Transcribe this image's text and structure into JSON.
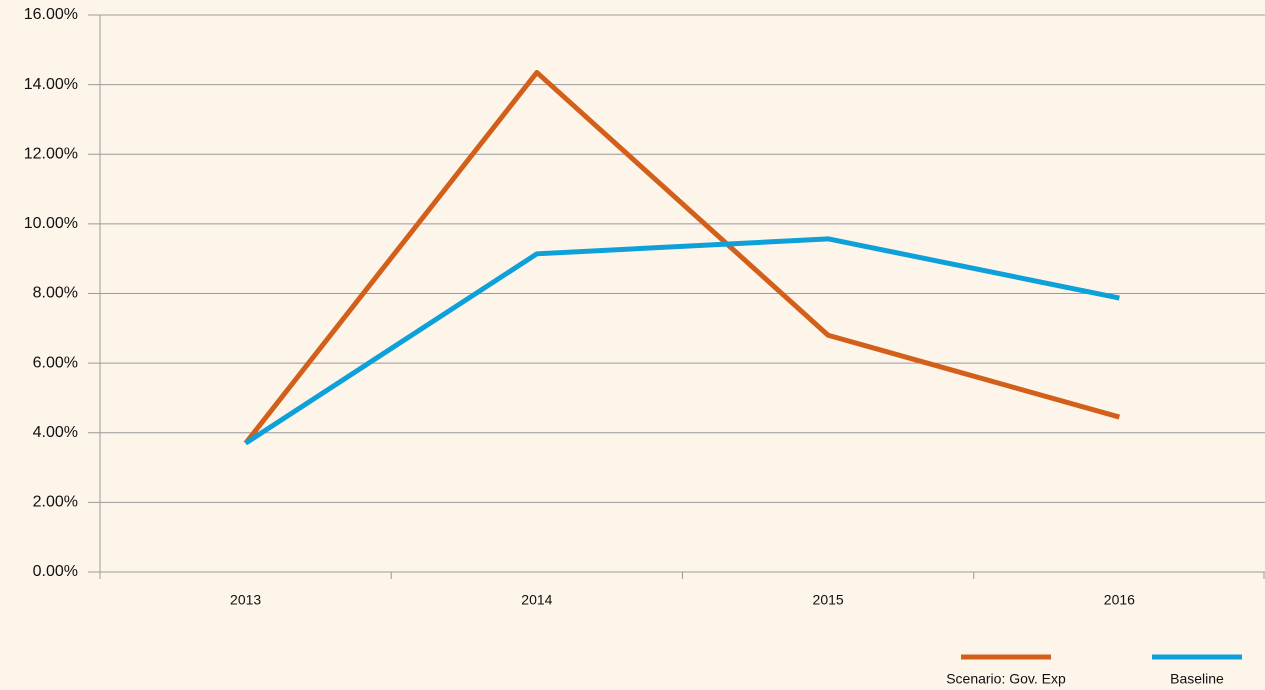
{
  "chart_data": {
    "type": "line",
    "categories": [
      "2013",
      "2014",
      "2015",
      "2016"
    ],
    "series": [
      {
        "name": "Scenario: Gov. Exp",
        "color": "#d2601a",
        "values": [
          3.7,
          14.35,
          6.8,
          4.45
        ]
      },
      {
        "name": "Baseline",
        "color": "#0ea0d9",
        "values": [
          3.7,
          9.14,
          9.57,
          7.87
        ]
      }
    ],
    "ylim": [
      0,
      16
    ],
    "yticks": [
      {
        "value": 0,
        "label": "0.00%"
      },
      {
        "value": 2,
        "label": "2.00%"
      },
      {
        "value": 4,
        "label": "4.00%"
      },
      {
        "value": 6,
        "label": "6.00%"
      },
      {
        "value": 8,
        "label": "8.00%"
      },
      {
        "value": 10,
        "label": "10.00%"
      },
      {
        "value": 12,
        "label": "12.00%"
      },
      {
        "value": 14,
        "label": "14.00%"
      },
      {
        "value": 16,
        "label": "16.00%"
      }
    ],
    "grid": true,
    "legend": "bottom-right"
  }
}
